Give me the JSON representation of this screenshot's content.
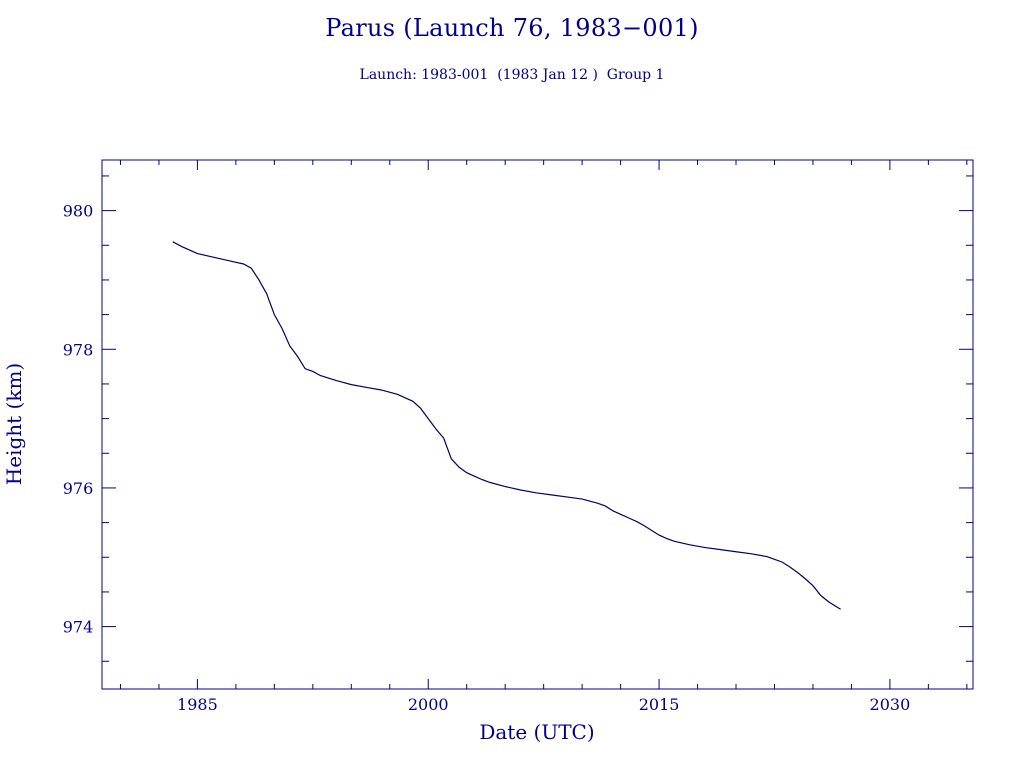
{
  "chart_data": {
    "type": "line",
    "title": "Parus (Launch 76, 1983−001)",
    "subtitle": "Launch: 1983-001  (1983 Jan 12 )  Group 1",
    "xlabel": "Date (UTC)",
    "ylabel": "Height (km)",
    "xlim": [
      1978.8,
      2035.4
    ],
    "ylim": [
      973.1,
      980.73
    ],
    "x_ticks": [
      1985,
      2000,
      2015,
      2030
    ],
    "y_ticks": [
      974,
      976,
      978,
      980
    ],
    "grid": false,
    "color": "#000066",
    "series": [
      {
        "x": [
          1983.4,
          1984.0,
          1985.0,
          1986.0,
          1987.0,
          1988.0,
          1988.5,
          1989.0,
          1989.5,
          1990.0,
          1990.5,
          1991.0,
          1991.5,
          1992.0,
          1992.5,
          1993.0,
          1994.0,
          1995.0,
          1996.0,
          1997.0,
          1998.0,
          1999.0,
          1999.5,
          2000.0,
          2000.5,
          2001.0,
          2001.5,
          2002.0,
          2002.5,
          2003.0,
          2003.5,
          2004.0,
          2005.0,
          2006.0,
          2007.0,
          2008.0,
          2009.0,
          2010.0,
          2011.0,
          2011.5,
          2012.0,
          2012.5,
          2013.0,
          2013.5,
          2014.0,
          2014.5,
          2015.0,
          2015.5,
          2016.0,
          2017.0,
          2018.0,
          2019.0,
          2020.0,
          2021.0,
          2022.0,
          2022.5,
          2023.0,
          2023.5,
          2024.0,
          2024.5,
          2025.0,
          2025.5,
          2026.0,
          2026.5,
          2026.8
        ],
        "y": [
          979.55,
          979.48,
          979.38,
          979.33,
          979.28,
          979.23,
          979.17,
          979.0,
          978.8,
          978.5,
          978.3,
          978.05,
          977.9,
          977.72,
          977.68,
          977.62,
          977.55,
          977.49,
          977.45,
          977.41,
          977.35,
          977.25,
          977.15,
          977.0,
          976.85,
          976.72,
          976.42,
          976.3,
          976.22,
          976.17,
          976.12,
          976.08,
          976.02,
          975.97,
          975.93,
          975.9,
          975.87,
          975.84,
          975.78,
          975.74,
          975.67,
          975.62,
          975.57,
          975.52,
          975.46,
          975.39,
          975.32,
          975.27,
          975.23,
          975.18,
          975.14,
          975.11,
          975.08,
          975.05,
          975.01,
          974.97,
          974.93,
          974.86,
          974.78,
          974.69,
          974.59,
          974.45,
          974.36,
          974.29,
          974.25
        ]
      }
    ]
  }
}
